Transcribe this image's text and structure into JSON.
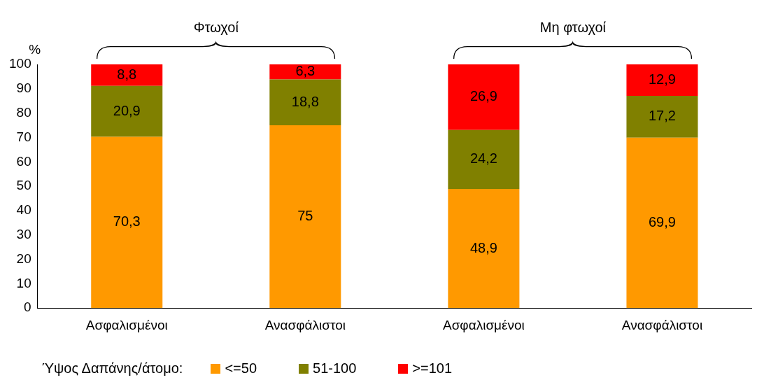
{
  "chart_data": {
    "type": "bar",
    "stacked": true,
    "ylabel": "%",
    "legend_title": "Ύψος Δαπάνης/άτομο:",
    "categories": [
      "Ασφαλισμένοι",
      "Ανασφάλιστοι",
      "Ασφαλισμένοι",
      "Ανασφάλιστοι"
    ],
    "series": [
      {
        "name": "<=50",
        "color": "#ff9900",
        "values": [
          70.3,
          75,
          48.9,
          69.9
        ],
        "value_labels": [
          "70,3",
          "75",
          "48,9",
          "69,9"
        ]
      },
      {
        "name": "51-100",
        "color": "#808000",
        "values": [
          20.9,
          18.8,
          24.2,
          17.2
        ],
        "value_labels": [
          "20,9",
          "18,8",
          "24,2",
          "17,2"
        ]
      },
      {
        "name": ">=101",
        "color": "#ff0000",
        "values": [
          8.8,
          6.3,
          26.9,
          12.9
        ],
        "value_labels": [
          "8,8",
          "6,3",
          "26,9",
          "12,9"
        ]
      }
    ],
    "ylim": [
      0,
      100
    ],
    "yticks": [
      0,
      10,
      20,
      30,
      40,
      50,
      60,
      70,
      80,
      90,
      100
    ],
    "grid": false,
    "legend": "bottom",
    "annotations": [
      "Φτωχοί",
      "Μη φτωχοί"
    ]
  }
}
